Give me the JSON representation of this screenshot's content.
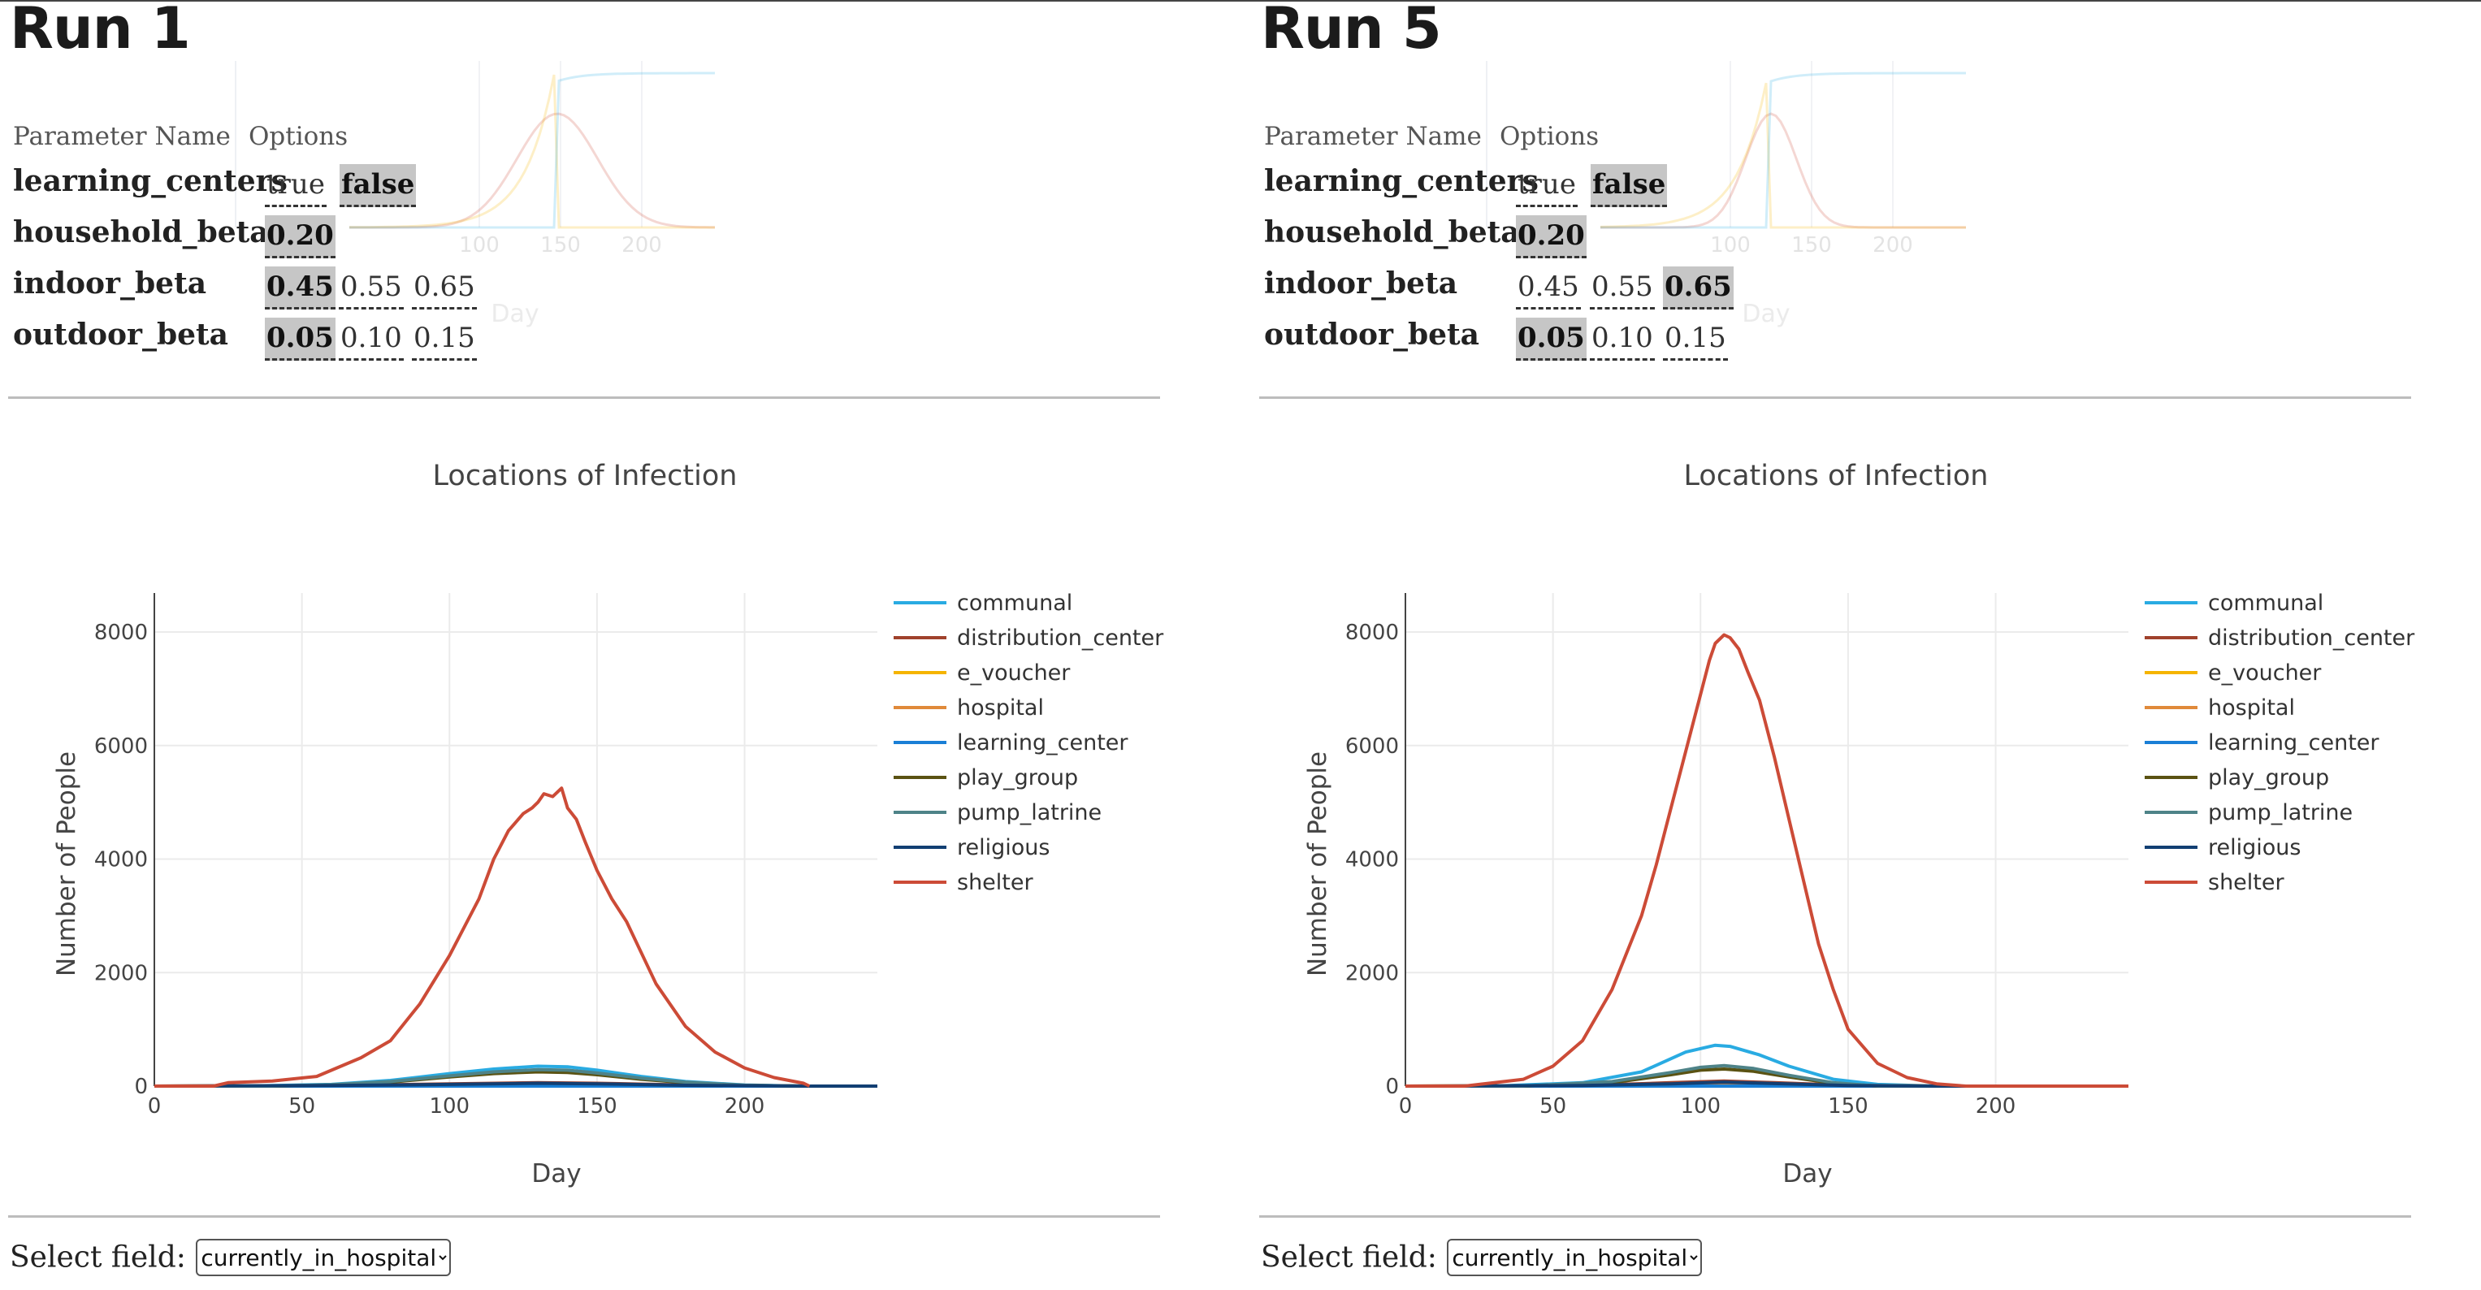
{
  "header_labels": {
    "param_name": "Parameter Name",
    "options": "Options"
  },
  "select_label": "Select field:",
  "select_value": "currently_in_hospital",
  "ghost_axis": {
    "ticks": [
      "100",
      "150",
      "200"
    ],
    "xlabel": "Day"
  },
  "colors": {
    "communal": "#29abe2",
    "distribution_center": "#a0422c",
    "e_voucher": "#f5b400",
    "hospital": "#e08a3a",
    "learning_center": "#1a7fd6",
    "play_group": "#5a5212",
    "pump_latrine": "#4e8388",
    "religious": "#123f73",
    "shelter": "#cc4b37"
  },
  "runs": [
    {
      "title": "Run 1",
      "params": [
        {
          "name": "learning_centers",
          "options": [
            "true",
            "false"
          ],
          "selected": 1
        },
        {
          "name": "household_beta",
          "options": [
            "0.20"
          ],
          "selected": 0
        },
        {
          "name": "indoor_beta",
          "options": [
            "0.45",
            "0.55",
            "0.65"
          ],
          "selected": 0
        },
        {
          "name": "outdoor_beta",
          "options": [
            "0.05",
            "0.10",
            "0.15"
          ],
          "selected": 0
        }
      ],
      "chart_data": {
        "type": "line",
        "title": "Locations of Infection",
        "xlabel": "Day",
        "ylabel": "Number of People",
        "xlim": [
          0,
          245
        ],
        "ylim": [
          0,
          8000
        ],
        "xticks": [
          0,
          50,
          100,
          150,
          200
        ],
        "yticks": [
          0,
          2000,
          4000,
          6000,
          8000
        ],
        "legend_position": "top-right",
        "series": [
          {
            "name": "communal",
            "x": [
              0,
              30,
              60,
              80,
              100,
              115,
              130,
              140,
              150,
              165,
              180,
              200,
              220,
              245
            ],
            "y": [
              0,
              0,
              30,
              100,
              220,
              300,
              350,
              340,
              280,
              170,
              80,
              20,
              0,
              0
            ]
          },
          {
            "name": "distribution_center",
            "x": [
              0,
              60,
              100,
              130,
              150,
              180,
              220,
              245
            ],
            "y": [
              0,
              10,
              40,
              60,
              50,
              20,
              0,
              0
            ]
          },
          {
            "name": "e_voucher",
            "x": [
              0,
              60,
              100,
              130,
              150,
              180,
              220,
              245
            ],
            "y": [
              0,
              5,
              20,
              30,
              25,
              10,
              0,
              0
            ]
          },
          {
            "name": "hospital",
            "x": [
              0,
              60,
              100,
              130,
              150,
              180,
              220,
              245
            ],
            "y": [
              0,
              5,
              15,
              25,
              20,
              8,
              0,
              0
            ]
          },
          {
            "name": "learning_center",
            "x": [
              0,
              60,
              100,
              130,
              150,
              180,
              220,
              245
            ],
            "y": [
              0,
              0,
              0,
              0,
              0,
              0,
              0,
              0
            ]
          },
          {
            "name": "play_group",
            "x": [
              0,
              40,
              60,
              80,
              100,
              115,
              130,
              140,
              150,
              165,
              180,
              200,
              220,
              245
            ],
            "y": [
              0,
              0,
              20,
              70,
              160,
              220,
              250,
              240,
              200,
              120,
              60,
              15,
              0,
              0
            ]
          },
          {
            "name": "pump_latrine",
            "x": [
              0,
              40,
              60,
              80,
              100,
              115,
              130,
              140,
              150,
              165,
              180,
              200,
              220,
              245
            ],
            "y": [
              0,
              0,
              25,
              80,
              180,
              250,
              290,
              280,
              230,
              140,
              70,
              15,
              0,
              0
            ]
          },
          {
            "name": "religious",
            "x": [
              0,
              60,
              100,
              130,
              150,
              180,
              220,
              245
            ],
            "y": [
              0,
              10,
              30,
              50,
              40,
              15,
              0,
              0
            ]
          },
          {
            "name": "shelter",
            "x": [
              0,
              20,
              25,
              40,
              55,
              70,
              80,
              90,
              100,
              110,
              115,
              120,
              125,
              128,
              130,
              132,
              135,
              138,
              140,
              143,
              146,
              150,
              155,
              160,
              170,
              180,
              190,
              200,
              210,
              220,
              222
            ],
            "y": [
              0,
              0,
              60,
              90,
              170,
              500,
              800,
              1450,
              2300,
              3300,
              4000,
              4500,
              4800,
              4900,
              5000,
              5150,
              5100,
              5250,
              4900,
              4700,
              4300,
              3800,
              3300,
              2900,
              1800,
              1050,
              600,
              320,
              150,
              50,
              0
            ]
          }
        ]
      }
    },
    {
      "title": "Run 5",
      "params": [
        {
          "name": "learning_centers",
          "options": [
            "true",
            "false"
          ],
          "selected": 1
        },
        {
          "name": "household_beta",
          "options": [
            "0.20"
          ],
          "selected": 0
        },
        {
          "name": "indoor_beta",
          "options": [
            "0.45",
            "0.55",
            "0.65"
          ],
          "selected": 2
        },
        {
          "name": "outdoor_beta",
          "options": [
            "0.05",
            "0.10",
            "0.15"
          ],
          "selected": 0
        }
      ],
      "chart_data": {
        "type": "line",
        "title": "Locations of Infection",
        "xlabel": "Day",
        "ylabel": "Number of People",
        "xlim": [
          0,
          245
        ],
        "ylim": [
          0,
          8000
        ],
        "xticks": [
          0,
          50,
          100,
          150,
          200
        ],
        "yticks": [
          0,
          2000,
          4000,
          6000,
          8000
        ],
        "legend_position": "top-right",
        "series": [
          {
            "name": "communal",
            "x": [
              0,
              30,
              60,
              80,
              95,
              105,
              110,
              120,
              130,
              145,
              160,
              180,
              245
            ],
            "y": [
              0,
              0,
              60,
              250,
              600,
              720,
              700,
              550,
              350,
              120,
              30,
              0,
              0
            ]
          },
          {
            "name": "distribution_center",
            "x": [
              0,
              60,
              90,
              108,
              125,
              150,
              180,
              245
            ],
            "y": [
              0,
              10,
              60,
              90,
              60,
              15,
              0,
              0
            ]
          },
          {
            "name": "e_voucher",
            "x": [
              0,
              60,
              90,
              108,
              125,
              150,
              180,
              245
            ],
            "y": [
              0,
              5,
              25,
              40,
              25,
              8,
              0,
              0
            ]
          },
          {
            "name": "hospital",
            "x": [
              0,
              60,
              90,
              108,
              125,
              150,
              180,
              245
            ],
            "y": [
              0,
              5,
              20,
              30,
              20,
              5,
              0,
              0
            ]
          },
          {
            "name": "learning_center",
            "x": [
              0,
              60,
              90,
              108,
              125,
              150,
              180,
              245
            ],
            "y": [
              0,
              0,
              0,
              0,
              0,
              0,
              0,
              0
            ]
          },
          {
            "name": "play_group",
            "x": [
              0,
              40,
              70,
              90,
              100,
              108,
              118,
              130,
              145,
              160,
              245
            ],
            "y": [
              0,
              0,
              60,
              200,
              280,
              300,
              260,
              160,
              50,
              0,
              0
            ]
          },
          {
            "name": "pump_latrine",
            "x": [
              0,
              40,
              70,
              90,
              100,
              108,
              118,
              130,
              145,
              160,
              245
            ],
            "y": [
              0,
              0,
              80,
              240,
              330,
              360,
              310,
              190,
              60,
              0,
              0
            ]
          },
          {
            "name": "religious",
            "x": [
              0,
              60,
              90,
              108,
              125,
              150,
              180,
              245
            ],
            "y": [
              0,
              10,
              40,
              70,
              45,
              10,
              0,
              0
            ]
          },
          {
            "name": "shelter",
            "x": [
              0,
              20,
              25,
              40,
              50,
              60,
              70,
              80,
              85,
              90,
              95,
              100,
              103,
              105,
              108,
              110,
              113,
              116,
              120,
              125,
              130,
              135,
              140,
              145,
              150,
              160,
              170,
              180,
              190,
              200,
              245
            ],
            "y": [
              0,
              0,
              30,
              120,
              350,
              800,
              1700,
              3000,
              3900,
              4900,
              5900,
              6900,
              7500,
              7800,
              7950,
              7900,
              7700,
              7300,
              6800,
              5800,
              4700,
              3600,
              2500,
              1700,
              1000,
              400,
              150,
              40,
              0,
              0,
              0
            ]
          }
        ]
      }
    }
  ]
}
